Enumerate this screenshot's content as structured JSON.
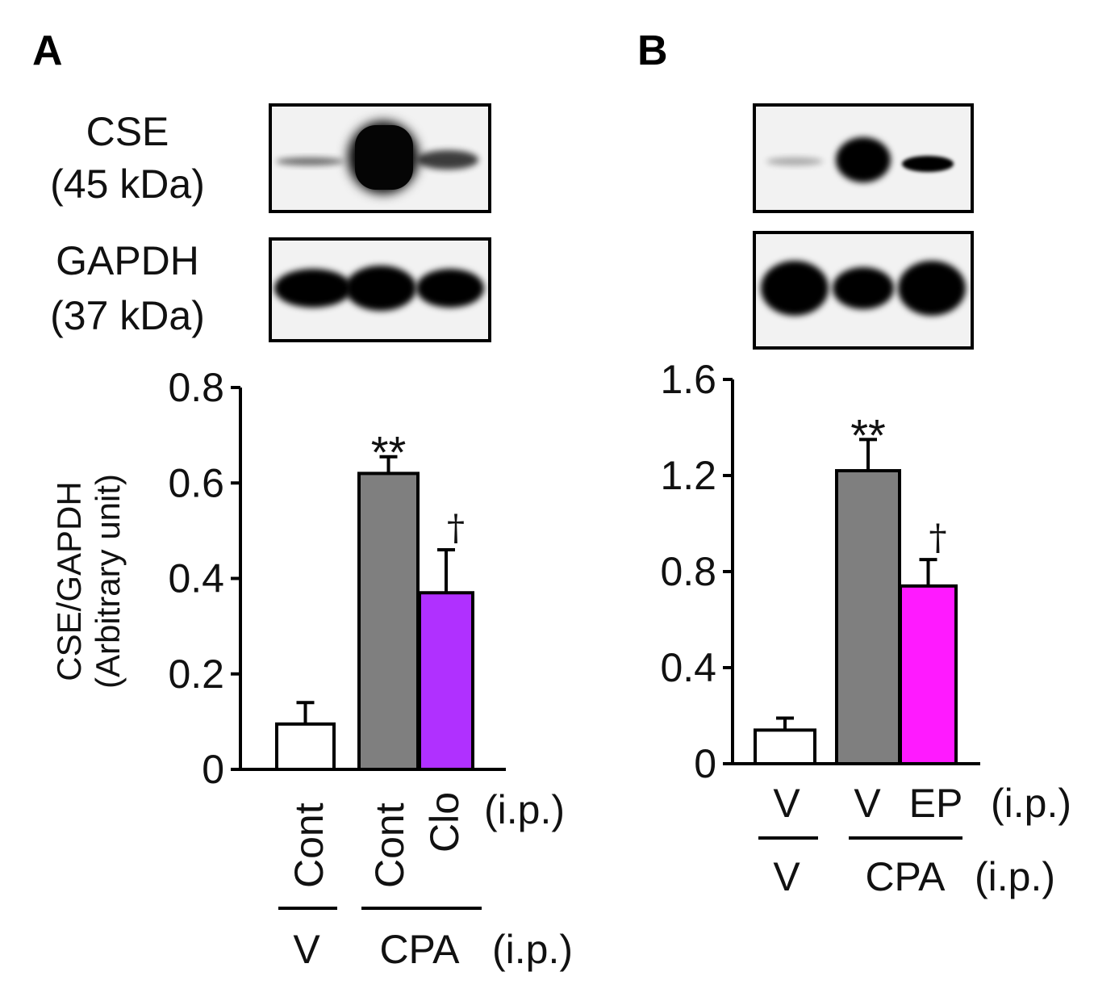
{
  "figure": {
    "panel_a_letter": "A",
    "panel_b_letter": "B",
    "blot_labels": {
      "cse": "CSE",
      "cse_size": "(45 kDa)",
      "gapdh": "GAPDH",
      "gapdh_size": "(37 kDa)"
    }
  },
  "colors": {
    "cont": "#ffffff",
    "cpa": "#7f7f7f",
    "clo": "#b030ff",
    "ep": "#ff1aff",
    "band": "#050505"
  },
  "chart_data": [
    {
      "type": "bar",
      "panel": "A",
      "categories": [
        "Cont",
        "Cont",
        "Clo"
      ],
      "group_labels": [
        "V",
        "CPA"
      ],
      "route_label": "(i.p.)",
      "values": [
        0.095,
        0.62,
        0.37
      ],
      "errors": [
        0.045,
        0.035,
        0.09
      ],
      "significance": [
        "",
        "**",
        "†"
      ],
      "ylabel": "CSE/GAPDH",
      "ylabel_sub": "(Arbitrary unit)",
      "ylim": [
        0,
        0.8
      ],
      "yticks": [
        0,
        0.2,
        0.4,
        0.6,
        0.8
      ],
      "ytick_labels": [
        "0",
        "0.2",
        "0.4",
        "0.6",
        "0.8"
      ],
      "colors": [
        "#ffffff",
        "#7f7f7f",
        "#b030ff"
      ]
    },
    {
      "type": "bar",
      "panel": "B",
      "categories": [
        "",
        "V",
        "EP"
      ],
      "group_labels": [
        "V",
        "CPA"
      ],
      "route_label": "(i.p.)",
      "values": [
        0.14,
        1.22,
        0.74
      ],
      "errors": [
        0.05,
        0.13,
        0.11
      ],
      "significance": [
        "",
        "**",
        "†"
      ],
      "ylim": [
        0,
        1.6
      ],
      "yticks": [
        0,
        0.4,
        0.8,
        1.2,
        1.6
      ],
      "ytick_labels": [
        "0",
        "0.4",
        "0.8",
        "1.2",
        "1.6"
      ],
      "colors": [
        "#ffffff",
        "#7f7f7f",
        "#ff1aff"
      ]
    }
  ]
}
